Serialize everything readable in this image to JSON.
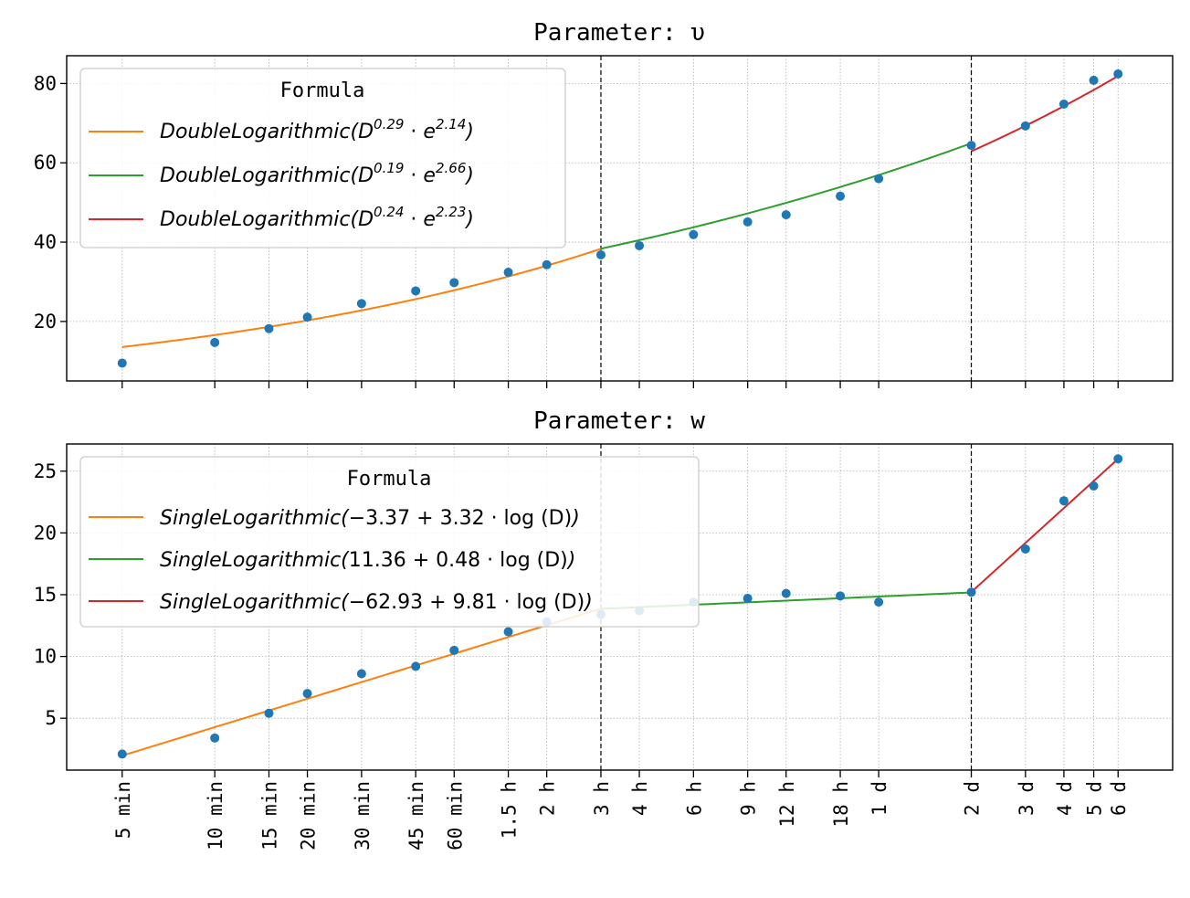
{
  "chart_data": [
    {
      "type": "scatter",
      "title": "Parameter: υ",
      "xscale": "log",
      "x_unit": "minutes",
      "ylim": [
        5,
        87
      ],
      "yticks": [
        20,
        40,
        60,
        80
      ],
      "grid": true,
      "legend": {
        "title": "Formula",
        "position": "top-left"
      },
      "breakpoints": [
        180,
        2880
      ],
      "points": {
        "x": [
          5,
          10,
          15,
          20,
          30,
          45,
          60,
          90,
          120,
          180,
          240,
          360,
          540,
          720,
          1080,
          1440,
          2880,
          4320,
          5760,
          7200,
          8640
        ],
        "y": [
          9.5,
          14.7,
          18.2,
          21.1,
          24.5,
          27.7,
          29.8,
          32.4,
          34.3,
          36.8,
          39.1,
          41.9,
          45.1,
          46.9,
          51.6,
          56.0,
          64.4,
          69.3,
          74.8,
          80.8,
          82.4
        ]
      },
      "series": [
        {
          "name": "DoubleLogarithmic(D^{0.29} · e^{2.14})",
          "base": "D",
          "exp": "0.29",
          "ebase": "e",
          "eexp": "2.14",
          "color": "#ff7f0e",
          "fit": {
            "kind": "powerlaw",
            "a": 0.29,
            "b": 2.14
          },
          "x_range": [
            5,
            180
          ]
        },
        {
          "name": "DoubleLogarithmic(D^{0.19} · e^{2.66})",
          "base": "D",
          "exp": "0.19",
          "ebase": "e",
          "eexp": "2.66",
          "color": "#2ca02c",
          "fit": {
            "kind": "powerlaw",
            "a": 0.19,
            "b": 2.66
          },
          "x_range": [
            180,
            2880
          ]
        },
        {
          "name": "DoubleLogarithmic(D^{0.24} · e^{2.23})",
          "base": "D",
          "exp": "0.24",
          "ebase": "e",
          "eexp": "2.23",
          "color": "#d62728",
          "fit": {
            "kind": "powerlaw",
            "a": 0.24,
            "b": 2.23
          },
          "x_range": [
            2880,
            8640
          ]
        }
      ],
      "point_color": "#1f77b4"
    },
    {
      "type": "scatter",
      "title": "Parameter: w",
      "xscale": "log",
      "x_unit": "minutes",
      "ylim": [
        0.8,
        27.2
      ],
      "yticks": [
        5,
        10,
        15,
        20,
        25
      ],
      "grid": true,
      "legend": {
        "title": "Formula",
        "position": "top-left"
      },
      "breakpoints": [
        180,
        2880
      ],
      "points": {
        "x": [
          5,
          10,
          15,
          20,
          30,
          45,
          60,
          90,
          120,
          180,
          240,
          360,
          540,
          720,
          1080,
          1440,
          2880,
          4320,
          5760,
          7200,
          8640
        ],
        "y": [
          2.1,
          3.4,
          5.4,
          7.0,
          8.6,
          9.2,
          10.5,
          12.0,
          12.8,
          13.4,
          13.7,
          14.4,
          14.7,
          15.1,
          14.9,
          14.4,
          15.2,
          18.7,
          22.6,
          23.8,
          26.0
        ]
      },
      "series": [
        {
          "name": "SingleLogarithmic(−3.37 + 3.32 · log (D))",
          "label_prefix": "SingleLogarithmic(",
          "label_expr": "−3.37 + 3.32 · log (D)",
          "color": "#ff7f0e",
          "fit": {
            "kind": "log",
            "a": -3.37,
            "b": 3.32
          },
          "x_range": [
            5,
            180
          ]
        },
        {
          "name": "SingleLogarithmic(11.36 + 0.48 · log (D))",
          "label_prefix": "SingleLogarithmic(",
          "label_expr": "11.36 + 0.48 · log (D)",
          "color": "#2ca02c",
          "fit": {
            "kind": "log",
            "a": 11.36,
            "b": 0.48
          },
          "x_range": [
            180,
            2880
          ]
        },
        {
          "name": "SingleLogarithmic(−62.93 + 9.81 · log (D))",
          "label_prefix": "SingleLogarithmic(",
          "label_expr": "−62.93 + 9.81 · log (D)",
          "color": "#d62728",
          "fit": {
            "kind": "log",
            "a": -62.93,
            "b": 9.81
          },
          "x_range": [
            2880,
            8640
          ]
        }
      ],
      "point_color": "#1f77b4"
    }
  ],
  "x_axis": {
    "tick_values": [
      5,
      10,
      15,
      20,
      30,
      45,
      60,
      90,
      120,
      180,
      240,
      360,
      540,
      720,
      1080,
      1440,
      2880,
      4320,
      5760,
      7200,
      8640
    ],
    "tick_labels": [
      "5 min",
      "10 min",
      "15 min",
      "20 min",
      "30 min",
      "45 min",
      "60 min",
      "1.5 h",
      "2 h",
      "3 h",
      "4 h",
      "6 h",
      "9 h",
      "12 h",
      "18 h",
      "1 d",
      "2 d",
      "3 d",
      "4 d",
      "5 d",
      "6 d"
    ],
    "xlim": [
      3.3,
      13000
    ]
  }
}
